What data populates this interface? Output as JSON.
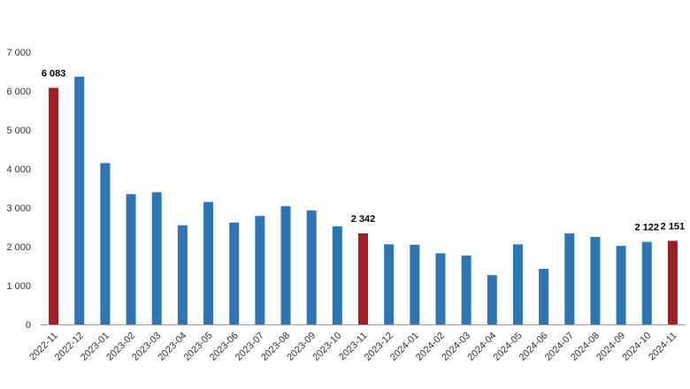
{
  "chart_data": {
    "type": "bar",
    "title": "",
    "xlabel": "",
    "ylabel": "",
    "ylim": [
      0,
      7000
    ],
    "yticks": [
      0,
      1000,
      2000,
      3000,
      4000,
      5000,
      6000,
      7000
    ],
    "ytick_labels": [
      "0",
      "1 000",
      "2 000",
      "3 000",
      "4 000",
      "5 000",
      "6 000",
      "7 000"
    ],
    "grid": false,
    "legend": "none",
    "categories": [
      "2022-11",
      "2022-12",
      "2023-01",
      "2023-02",
      "2023-03",
      "2023-04",
      "2023-05",
      "2023-06",
      "2023-07",
      "2023-08",
      "2023-09",
      "2023-10",
      "2023-11",
      "2023-12",
      "2024-01",
      "2024-02",
      "2024-03",
      "2024-04",
      "2024-05",
      "2024-06",
      "2024-07",
      "2024-08",
      "2024-09",
      "2024-10",
      "2024-11"
    ],
    "values": [
      6083,
      6370,
      4150,
      3350,
      3400,
      2550,
      3150,
      2620,
      2790,
      3040,
      2930,
      2520,
      2342,
      2060,
      2050,
      1830,
      1770,
      1270,
      2060,
      1430,
      2340,
      2250,
      2020,
      2122,
      2151
    ],
    "highlight_indices": [
      0,
      12,
      24
    ],
    "data_labels": [
      {
        "index": 0,
        "text": "6 083"
      },
      {
        "index": 12,
        "text": "2 342"
      },
      {
        "index": 23,
        "text": "2 122"
      },
      {
        "index": 24,
        "text": "2 151"
      }
    ],
    "colors": {
      "bar": "#2e75b6",
      "highlight": "#a61c24",
      "axis": "#9a9a9a"
    }
  }
}
